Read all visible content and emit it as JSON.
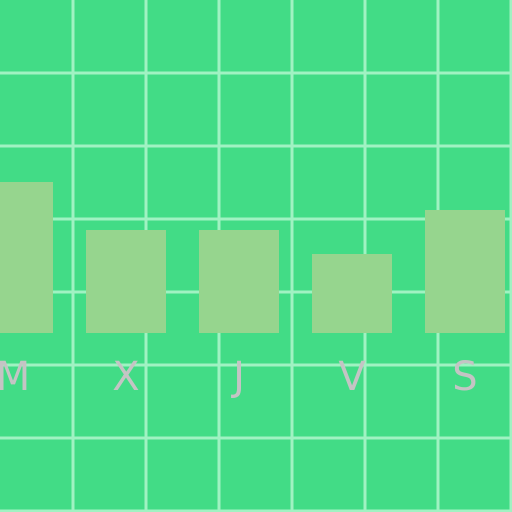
{
  "chart_data": {
    "type": "bar",
    "categories": [
      "M",
      "X",
      "J",
      "V",
      "S"
    ],
    "values": [
      151,
      103,
      103,
      79,
      123
    ],
    "ylim": [
      0,
      333
    ],
    "grid": true,
    "legend": "none"
  },
  "colors": {
    "background": "#42dc86",
    "grid": "#a0f2c2",
    "bar": "#96d58e",
    "tick_label": "#c4c4c4"
  }
}
